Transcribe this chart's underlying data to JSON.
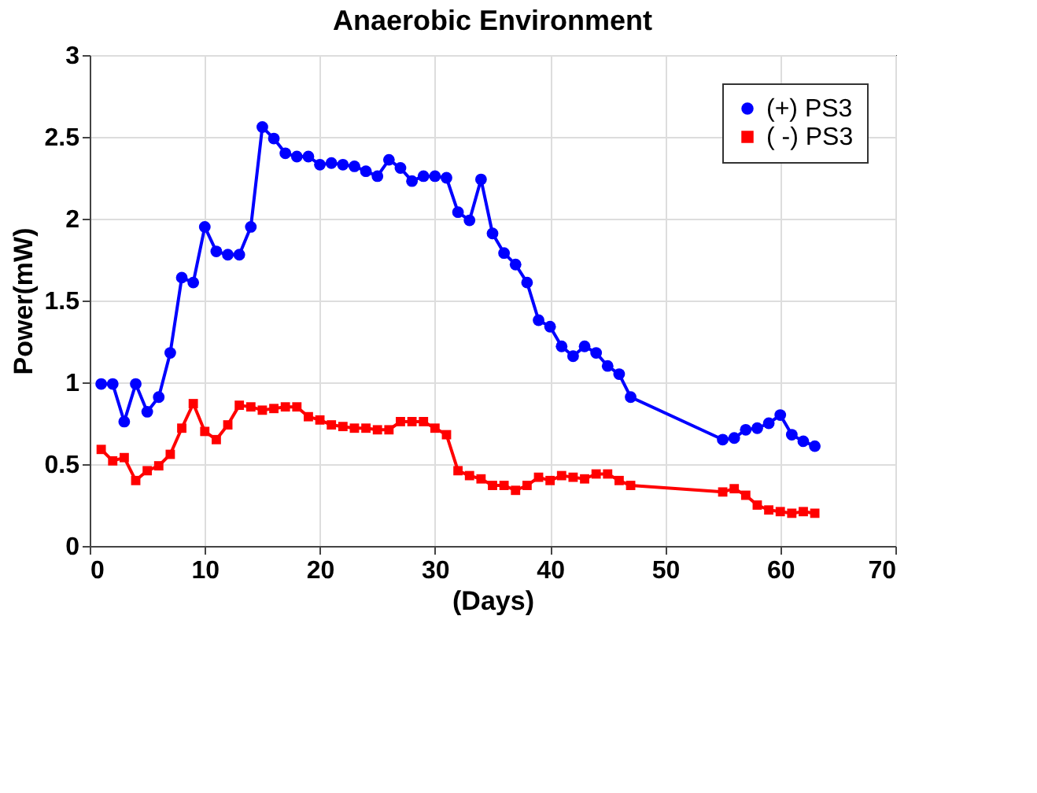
{
  "chart_data": {
    "type": "line",
    "title": "Anaerobic Environment",
    "xlabel": "(Days)",
    "ylabel": "Power(mW)",
    "x": [
      1,
      2,
      3,
      4,
      5,
      6,
      7,
      8,
      9,
      10,
      11,
      12,
      13,
      14,
      15,
      16,
      17,
      18,
      19,
      20,
      21,
      22,
      23,
      24,
      25,
      26,
      27,
      28,
      29,
      30,
      31,
      32,
      33,
      34,
      35,
      36,
      37,
      38,
      39,
      40,
      41,
      42,
      43,
      44,
      45,
      46,
      47,
      55,
      56,
      57,
      58,
      59,
      60,
      61,
      62,
      63
    ],
    "series": [
      {
        "name": "(+) PS3",
        "color": "#0000ff",
        "marker": "circle",
        "values": [
          0.99,
          0.99,
          0.76,
          0.99,
          0.82,
          0.91,
          1.18,
          1.64,
          1.61,
          1.95,
          1.8,
          1.78,
          1.78,
          1.95,
          2.56,
          2.49,
          2.4,
          2.38,
          2.38,
          2.33,
          2.34,
          2.33,
          2.32,
          2.29,
          2.26,
          2.36,
          2.31,
          2.23,
          2.26,
          2.26,
          2.25,
          2.04,
          1.99,
          2.24,
          1.91,
          1.79,
          1.72,
          1.61,
          1.38,
          1.34,
          1.22,
          1.16,
          1.22,
          1.18,
          1.1,
          1.05,
          0.91,
          0.65,
          0.66,
          0.71,
          0.72,
          0.75,
          0.8,
          0.68,
          0.64,
          0.61
        ]
      },
      {
        "name": "( -) PS3",
        "color": "#ff0000",
        "marker": "square",
        "values": [
          0.59,
          0.52,
          0.54,
          0.4,
          0.46,
          0.49,
          0.56,
          0.72,
          0.87,
          0.7,
          0.65,
          0.74,
          0.86,
          0.85,
          0.83,
          0.84,
          0.85,
          0.85,
          0.79,
          0.77,
          0.74,
          0.73,
          0.72,
          0.72,
          0.71,
          0.71,
          0.76,
          0.76,
          0.76,
          0.72,
          0.68,
          0.46,
          0.43,
          0.41,
          0.37,
          0.37,
          0.34,
          0.37,
          0.42,
          0.4,
          0.43,
          0.42,
          0.41,
          0.44,
          0.44,
          0.4,
          0.37,
          0.33,
          0.35,
          0.31,
          0.25,
          0.22,
          0.21,
          0.2,
          0.21,
          0.2
        ]
      }
    ],
    "xlim": [
      0,
      70
    ],
    "xticks": [
      0,
      10,
      20,
      30,
      40,
      50,
      60,
      70
    ],
    "ylim": [
      0,
      3
    ],
    "yticks": [
      0,
      0.5,
      1,
      1.5,
      2,
      2.5,
      3
    ],
    "grid": true,
    "legend": "top right",
    "line_style": "solid"
  }
}
